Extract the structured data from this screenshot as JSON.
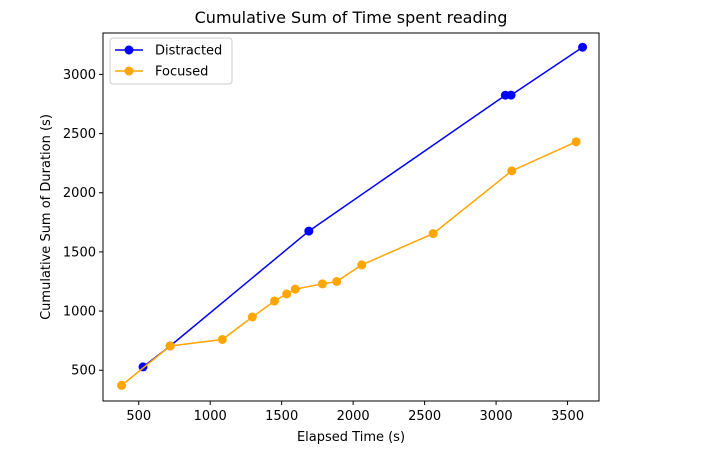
{
  "chart_data": {
    "type": "line",
    "title": "Cumulative Sum of Time spent reading",
    "xlabel": "Elapsed Time (s)",
    "ylabel": "Cumulative Sum of Duration (s)",
    "xlim": [
      250,
      3720
    ],
    "ylim": [
      240,
      3350
    ],
    "xticks": [
      500,
      1000,
      1500,
      2000,
      2500,
      3000,
      3500
    ],
    "yticks": [
      500,
      1000,
      1500,
      2000,
      2500,
      3000
    ],
    "grid": false,
    "legend_position": "upper-left",
    "series": [
      {
        "name": "Distracted",
        "color": "#0000ff",
        "marker": "circle",
        "x": [
          530,
          720,
          1690,
          3065,
          3105,
          3605
        ],
        "y": [
          528,
          705,
          1676,
          2824,
          2825,
          3230
        ]
      },
      {
        "name": "Focused",
        "color": "#ffa500",
        "marker": "circle",
        "x": [
          380,
          720,
          1085,
          1295,
          1450,
          1535,
          1595,
          1785,
          1885,
          2060,
          2560,
          3110,
          3560
        ],
        "y": [
          372,
          705,
          760,
          950,
          1085,
          1145,
          1185,
          1230,
          1250,
          1390,
          1655,
          2185,
          2430
        ]
      }
    ]
  }
}
